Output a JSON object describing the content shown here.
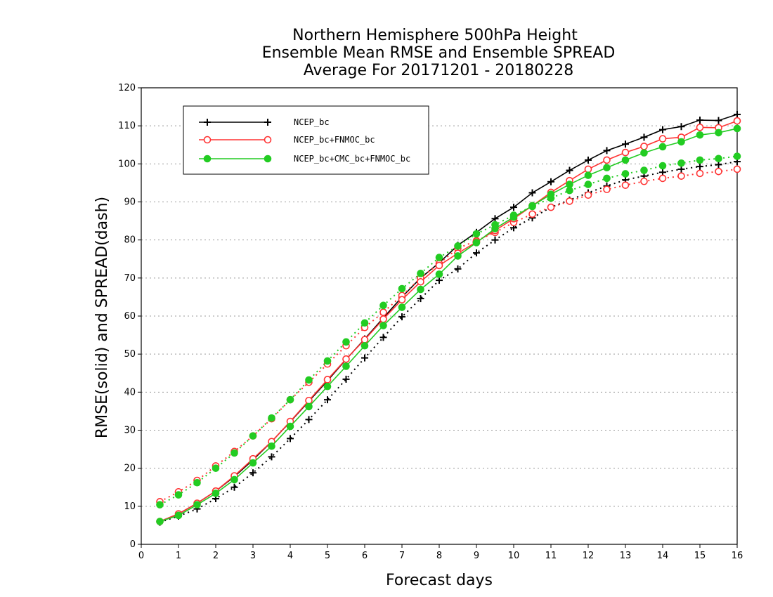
{
  "chart_data": {
    "type": "line",
    "title": [
      "Northern Hemisphere 500hPa Height",
      "Ensemble Mean RMSE and Ensemble SPREAD",
      "Average For 20171201 - 20180228"
    ],
    "xlabel": "Forecast days",
    "ylabel": "RMSE(solid) and SPREAD(dash)",
    "xlim": [
      0,
      16
    ],
    "ylim": [
      0,
      120
    ],
    "xticks": [
      0,
      1,
      2,
      3,
      4,
      5,
      6,
      7,
      8,
      9,
      10,
      11,
      12,
      13,
      14,
      15,
      16
    ],
    "yticks": [
      0,
      10,
      20,
      30,
      40,
      50,
      60,
      70,
      80,
      90,
      100,
      110,
      120
    ],
    "grid": "horizontal dotted",
    "legend_position": "top-left",
    "x": [
      0.5,
      1,
      1.5,
      2,
      2.5,
      3,
      3.5,
      4,
      4.5,
      5,
      5.5,
      6,
      6.5,
      7,
      7.5,
      8,
      8.5,
      9,
      9.5,
      10,
      10.5,
      11,
      11.5,
      12,
      12.5,
      13,
      13.5,
      14,
      14.5,
      15,
      15.5,
      16
    ],
    "series": [
      {
        "name": "NCEP_bc",
        "color": "#000000",
        "marker": "plus",
        "rmse": [
          6,
          8,
          10.8,
          14,
          17.8,
          22.2,
          27,
          32.2,
          37.6,
          43,
          48.6,
          54,
          59.5,
          65,
          70,
          74,
          78.6,
          82,
          85.6,
          88.6,
          92.4,
          95.3,
          98.3,
          101,
          103.5,
          105.2,
          107,
          109,
          109.8,
          111.5,
          111.4,
          113
        ],
        "spread": [
          5.8,
          7.4,
          9.3,
          12,
          15,
          18.8,
          23,
          27.8,
          32.8,
          38,
          43.4,
          49,
          54.4,
          59.8,
          64.6,
          69.4,
          72.4,
          76.6,
          80,
          83.2,
          85.8,
          88.6,
          90.5,
          92.4,
          94.2,
          95.8,
          96.8,
          97.8,
          98.6,
          99.3,
          99.8,
          100.6
        ]
      },
      {
        "name": "NCEP_bc+FNMOC_bc",
        "color": "#ff3333",
        "marker": "open-circle",
        "rmse": [
          6,
          8,
          10.8,
          14,
          18,
          22.5,
          27,
          32.3,
          37.8,
          43.3,
          48.7,
          53.8,
          59.2,
          64.3,
          69,
          73.3,
          76.5,
          79.5,
          82.5,
          85.6,
          89,
          92.5,
          95.6,
          98.6,
          101,
          103,
          104.6,
          106.6,
          107,
          109.6,
          109.5,
          111.3
        ],
        "spread": [
          11.2,
          13.8,
          16.8,
          20.6,
          24.4,
          28.5,
          33,
          38,
          42.6,
          47.4,
          52.2,
          57,
          61,
          65.4,
          70,
          73.8,
          77.8,
          79.8,
          82,
          84.6,
          86.8,
          88.6,
          90.2,
          91.8,
          93.3,
          94.4,
          95.4,
          96.2,
          96.8,
          97.5,
          98,
          98.6
        ]
      },
      {
        "name": "NCEP_bc+CMC_bc+FNMOC_bc",
        "color": "#22cc22",
        "marker": "filled-circle",
        "rmse": [
          6,
          7.6,
          10.4,
          13.4,
          17,
          21.4,
          25.8,
          31,
          36.2,
          41.5,
          46.8,
          52.2,
          57.5,
          62.3,
          67,
          71,
          75.8,
          79.3,
          83,
          86,
          89,
          92,
          94.6,
          97,
          99,
          101,
          102.9,
          104.5,
          105.8,
          107.6,
          108.2,
          109.3
        ],
        "spread": [
          10.4,
          13,
          16.2,
          20,
          24,
          28.5,
          33.2,
          38,
          43.2,
          48.2,
          53.2,
          58.2,
          62.8,
          67.2,
          71.2,
          75.4,
          78.4,
          81.6,
          84,
          86.5,
          88.8,
          91,
          93,
          94.6,
          96.2,
          97.4,
          98.3,
          99.5,
          100.2,
          101,
          101.4,
          102
        ]
      }
    ]
  }
}
